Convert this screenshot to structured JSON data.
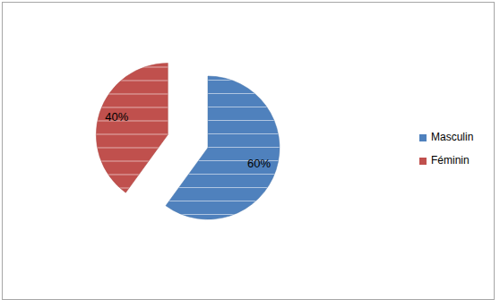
{
  "chart_data": {
    "type": "pie",
    "categories": [
      "Masculin",
      "Féminin"
    ],
    "values": [
      60,
      40
    ],
    "value_labels": [
      "60%",
      "40%"
    ],
    "colors": [
      "#4f81bd",
      "#c0504d"
    ],
    "data_labels": true,
    "legend": "right"
  }
}
